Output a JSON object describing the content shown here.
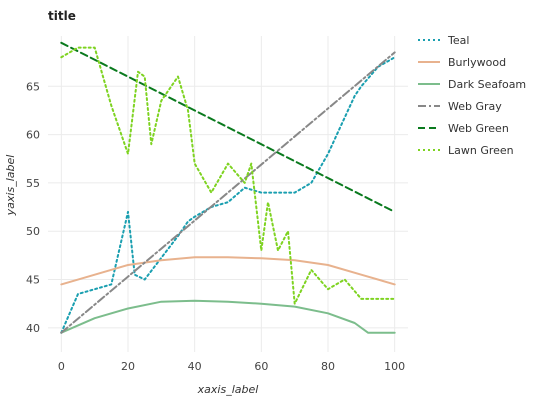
{
  "chart_data": {
    "type": "line",
    "title": "title",
    "xlabel": "xaxis_label",
    "ylabel": "yaxis_label",
    "xlim": [
      -4,
      104
    ],
    "ylim": [
      37.5,
      70.2
    ],
    "x_ticks": [
      0,
      20,
      40,
      60,
      80,
      100
    ],
    "y_ticks": [
      40,
      45,
      50,
      55,
      60,
      65
    ],
    "grid": true,
    "legend_position": "right",
    "series": [
      {
        "name": "Teal",
        "color": "#1a9fb0",
        "style": "dotted",
        "points": [
          [
            0,
            39.5
          ],
          [
            5,
            43.5
          ],
          [
            10,
            44
          ],
          [
            15,
            44.5
          ],
          [
            20,
            52
          ],
          [
            22,
            45.5
          ],
          [
            25,
            45
          ],
          [
            35,
            49.5
          ],
          [
            38,
            51
          ],
          [
            40,
            51.5
          ],
          [
            45,
            52.5
          ],
          [
            50,
            53
          ],
          [
            55,
            54.5
          ],
          [
            60,
            54
          ],
          [
            70,
            54
          ],
          [
            75,
            55
          ],
          [
            80,
            58
          ],
          [
            84,
            61
          ],
          [
            88,
            64
          ],
          [
            90,
            65
          ],
          [
            95,
            67
          ],
          [
            100,
            68
          ]
        ]
      },
      {
        "name": "Burlywood",
        "color": "#e8b28e",
        "style": "solid",
        "points": [
          [
            0,
            44.5
          ],
          [
            10,
            45.5
          ],
          [
            20,
            46.5
          ],
          [
            30,
            47
          ],
          [
            40,
            47.3
          ],
          [
            50,
            47.3
          ],
          [
            60,
            47.2
          ],
          [
            70,
            47
          ],
          [
            80,
            46.5
          ],
          [
            90,
            45.5
          ],
          [
            100,
            44.5
          ]
        ]
      },
      {
        "name": "Dark Seafoam",
        "color": "#7cbd8c",
        "style": "solid",
        "points": [
          [
            0,
            39.5
          ],
          [
            10,
            41
          ],
          [
            20,
            42
          ],
          [
            30,
            42.7
          ],
          [
            40,
            42.8
          ],
          [
            50,
            42.7
          ],
          [
            60,
            42.5
          ],
          [
            70,
            42.2
          ],
          [
            80,
            41.5
          ],
          [
            88,
            40.5
          ],
          [
            92,
            39.5
          ],
          [
            100,
            39.5
          ]
        ]
      },
      {
        "name": "Web Gray",
        "color": "#888888",
        "style": "dashdot",
        "points": [
          [
            0,
            39.5
          ],
          [
            100,
            68.5
          ]
        ]
      },
      {
        "name": "Web Green",
        "color": "#0a7a1e",
        "style": "dashed",
        "points": [
          [
            0,
            69.5
          ],
          [
            100,
            52
          ]
        ]
      },
      {
        "name": "Lawn Green",
        "color": "#7ed321",
        "style": "dotted",
        "points": [
          [
            0,
            68
          ],
          [
            5,
            69
          ],
          [
            10,
            69
          ],
          [
            15,
            63
          ],
          [
            20,
            58
          ],
          [
            23,
            66.5
          ],
          [
            25,
            66
          ],
          [
            27,
            59
          ],
          [
            30,
            63.5
          ],
          [
            35,
            66
          ],
          [
            38,
            62.5
          ],
          [
            40,
            57
          ],
          [
            45,
            54
          ],
          [
            50,
            57
          ],
          [
            55,
            55
          ],
          [
            57,
            57
          ],
          [
            60,
            48
          ],
          [
            62,
            53
          ],
          [
            65,
            48
          ],
          [
            68,
            50
          ],
          [
            70,
            42.5
          ],
          [
            75,
            46
          ],
          [
            80,
            44
          ],
          [
            85,
            45
          ],
          [
            90,
            43
          ],
          [
            95,
            43
          ],
          [
            100,
            43
          ]
        ]
      }
    ]
  }
}
